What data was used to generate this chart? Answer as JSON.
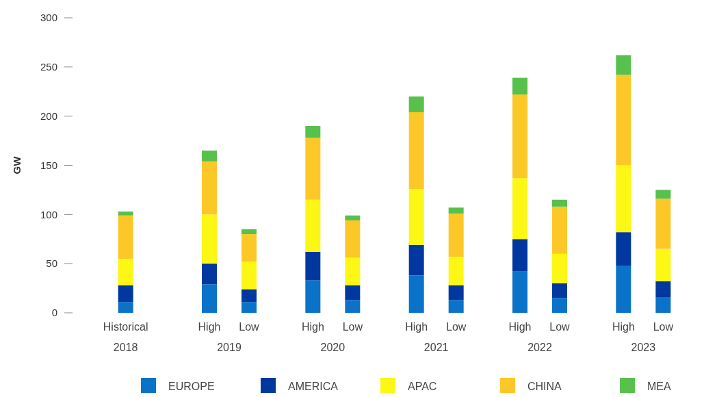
{
  "chart_data": {
    "type": "bar",
    "stacked": true,
    "ylabel": "GW",
    "categories": [
      "Historical",
      "High",
      "Low",
      "High",
      "Low",
      "High",
      "Low",
      "High",
      "Low",
      "High",
      "Low"
    ],
    "annotations": [
      "2018",
      "2019",
      "2020",
      "2021",
      "2022",
      "2023"
    ],
    "ylim": [
      0,
      300
    ],
    "yticks": [
      0,
      50,
      100,
      150,
      200,
      250,
      300
    ],
    "grid": false,
    "legend": "bottom",
    "series": [
      {
        "name": "EUROPE",
        "color": "#0a72c8",
        "values": [
          11,
          29,
          11,
          33,
          13,
          38,
          13,
          42,
          15,
          48,
          16
        ]
      },
      {
        "name": "AMERICA",
        "color": "#0038a0",
        "values": [
          17,
          21,
          13,
          29,
          15,
          31,
          15,
          33,
          15,
          34,
          16
        ]
      },
      {
        "name": "APAC",
        "color": "#fcf714",
        "values": [
          27,
          50,
          28,
          53,
          28,
          57,
          29,
          62,
          30,
          68,
          33
        ]
      },
      {
        "name": "CHINA",
        "color": "#fcc828",
        "values": [
          44,
          54,
          28,
          63,
          38,
          78,
          44,
          85,
          48,
          92,
          51
        ]
      },
      {
        "name": "MEA",
        "color": "#58c04c",
        "values": [
          4,
          11,
          5,
          12,
          5,
          16,
          6,
          17,
          7,
          20,
          9
        ]
      }
    ]
  }
}
